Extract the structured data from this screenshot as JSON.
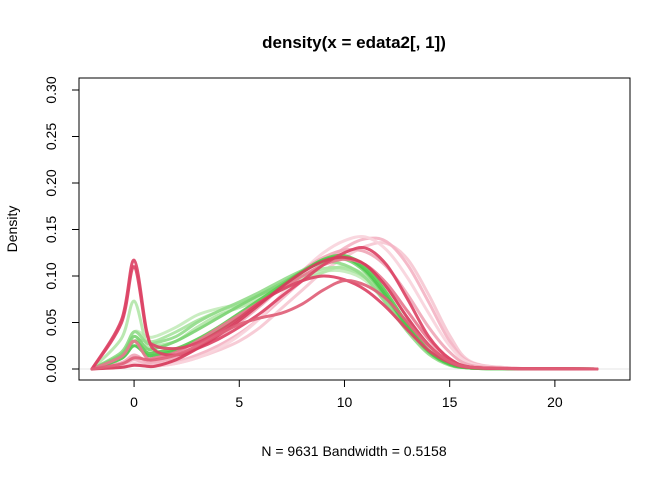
{
  "chart_data": {
    "type": "line",
    "title": "density(x = edata2[, 1])",
    "xlabel": "N = 9631   Bandwidth = 0.5158",
    "ylabel": "Density",
    "xlim": [
      -2,
      23
    ],
    "ylim": [
      0,
      0.3
    ],
    "x_ticks": [
      0,
      5,
      10,
      15,
      20
    ],
    "x_tick_labels": [
      "0",
      "5",
      "10",
      "15",
      "20"
    ],
    "y_ticks": [
      0,
      0.05,
      0.1,
      0.15,
      0.2,
      0.25,
      0.3
    ],
    "y_tick_labels": [
      "0.00",
      "0.05",
      "0.10",
      "0.15",
      "0.20",
      "0.25",
      "0.30"
    ],
    "grid": false,
    "legend": "none",
    "colors": {
      "green": "#4CC84C",
      "red": "#DC4466",
      "light_green": "#A8E4A0",
      "light_red": "#F4B4C4"
    },
    "series": [
      {
        "color": "#F6C8D2",
        "x": [
          -2,
          0,
          1,
          2,
          3,
          4,
          5,
          6,
          7,
          8,
          9,
          10,
          11,
          12,
          13,
          14,
          15,
          16,
          18,
          20,
          22
        ],
        "y": [
          0,
          0.005,
          0.003,
          0.006,
          0.012,
          0.02,
          0.03,
          0.045,
          0.065,
          0.085,
          0.105,
          0.12,
          0.132,
          0.135,
          0.118,
          0.08,
          0.036,
          0.008,
          0.001,
          0.0004,
          0
        ]
      },
      {
        "color": "#F4B4C4",
        "x": [
          -2,
          0,
          1,
          2,
          3,
          4,
          5,
          6,
          7,
          8,
          9,
          10,
          11,
          12,
          13,
          14,
          15,
          16,
          18,
          20,
          22
        ],
        "y": [
          0,
          0.01,
          0.005,
          0.008,
          0.015,
          0.025,
          0.038,
          0.055,
          0.075,
          0.095,
          0.113,
          0.13,
          0.14,
          0.137,
          0.112,
          0.072,
          0.03,
          0.007,
          0.001,
          0.0004,
          0
        ]
      },
      {
        "color": "#F8D4DC",
        "x": [
          -2,
          0,
          1,
          2,
          3,
          4,
          5,
          6,
          7,
          8,
          9,
          10,
          11,
          12,
          13,
          14,
          15,
          16,
          18,
          20,
          22
        ],
        "y": [
          0,
          0.006,
          0.003,
          0.006,
          0.012,
          0.022,
          0.036,
          0.055,
          0.08,
          0.105,
          0.125,
          0.138,
          0.142,
          0.128,
          0.098,
          0.06,
          0.025,
          0.006,
          0.001,
          0.0004,
          0
        ]
      },
      {
        "color": "#F0A8B8",
        "x": [
          -2,
          0,
          1,
          2,
          3,
          4,
          5,
          6,
          7,
          8,
          9,
          10,
          11,
          12,
          13,
          14,
          15,
          16,
          18,
          20,
          22
        ],
        "y": [
          0,
          0.015,
          0.008,
          0.012,
          0.022,
          0.035,
          0.05,
          0.068,
          0.088,
          0.106,
          0.12,
          0.128,
          0.126,
          0.11,
          0.08,
          0.045,
          0.018,
          0.004,
          0.0008,
          0.0003,
          0
        ]
      },
      {
        "color": "#C4ECBC",
        "x": [
          -2,
          0,
          1,
          2,
          3,
          4,
          5,
          6,
          7,
          8,
          9,
          10,
          11,
          12,
          13,
          14,
          15,
          16,
          18,
          20,
          22
        ],
        "y": [
          0,
          0.04,
          0.035,
          0.045,
          0.058,
          0.065,
          0.07,
          0.078,
          0.088,
          0.098,
          0.105,
          0.105,
          0.095,
          0.07,
          0.042,
          0.018,
          0.005,
          0.001,
          0.0003,
          0.0002,
          0
        ]
      },
      {
        "color": "#B4E6AA",
        "x": [
          -2,
          0,
          1,
          2,
          3,
          4,
          5,
          6,
          7,
          8,
          9,
          10,
          11,
          12,
          13,
          14,
          15,
          16,
          18,
          20,
          22
        ],
        "y": [
          0,
          0.073,
          0.025,
          0.03,
          0.045,
          0.058,
          0.066,
          0.075,
          0.085,
          0.095,
          0.104,
          0.11,
          0.1,
          0.075,
          0.045,
          0.02,
          0.006,
          0.0015,
          0.0003,
          0.0002,
          0
        ]
      },
      {
        "color": "#A8E4A0",
        "x": [
          -2,
          0,
          1,
          2,
          3,
          4,
          5,
          6,
          7,
          8,
          9,
          10,
          11,
          12,
          13,
          14,
          15,
          16,
          18,
          20,
          22
        ],
        "y": [
          0,
          0.03,
          0.03,
          0.04,
          0.052,
          0.062,
          0.07,
          0.08,
          0.09,
          0.1,
          0.108,
          0.108,
          0.098,
          0.072,
          0.042,
          0.018,
          0.005,
          0.001,
          0.0003,
          0.0002,
          0
        ]
      },
      {
        "color": "#94DC8C",
        "x": [
          -2,
          0,
          1,
          2,
          3,
          4,
          5,
          6,
          7,
          8,
          9,
          10,
          11,
          12,
          13,
          14,
          15,
          16,
          18,
          20,
          22
        ],
        "y": [
          0,
          0.04,
          0.028,
          0.035,
          0.05,
          0.062,
          0.072,
          0.083,
          0.095,
          0.106,
          0.115,
          0.112,
          0.098,
          0.07,
          0.04,
          0.016,
          0.004,
          0.001,
          0.0003,
          0.0002,
          0
        ]
      },
      {
        "color": "#7CD474",
        "x": [
          -2,
          0,
          1,
          2,
          3,
          4,
          5,
          6,
          7,
          8,
          9,
          10,
          11,
          12,
          13,
          14,
          15,
          16,
          18,
          20,
          22
        ],
        "y": [
          0,
          0.035,
          0.022,
          0.03,
          0.042,
          0.055,
          0.068,
          0.08,
          0.092,
          0.105,
          0.115,
          0.118,
          0.104,
          0.076,
          0.044,
          0.018,
          0.005,
          0.001,
          0.0003,
          0.0002,
          0
        ]
      },
      {
        "color": "#5CCC54",
        "x": [
          -2,
          0,
          1,
          2,
          3,
          4,
          5,
          6,
          7,
          8,
          9,
          10,
          11,
          12,
          13,
          14,
          15,
          16,
          18,
          20,
          22
        ],
        "y": [
          0,
          0.03,
          0.018,
          0.022,
          0.032,
          0.045,
          0.06,
          0.075,
          0.09,
          0.105,
          0.118,
          0.122,
          0.11,
          0.082,
          0.048,
          0.02,
          0.006,
          0.001,
          0.0003,
          0.0002,
          0
        ]
      },
      {
        "color": "#4CC84C",
        "x": [
          -2,
          0,
          1,
          2,
          3,
          4,
          5,
          6,
          7,
          8,
          9,
          10,
          11,
          12,
          13,
          14,
          15,
          16,
          18,
          20,
          22
        ],
        "y": [
          0,
          0.025,
          0.015,
          0.02,
          0.03,
          0.042,
          0.056,
          0.072,
          0.088,
          0.104,
          0.117,
          0.12,
          0.106,
          0.078,
          0.045,
          0.019,
          0.005,
          0.001,
          0.0003,
          0.0002,
          0
        ]
      },
      {
        "color": "#E87890",
        "x": [
          -2,
          0,
          1,
          2,
          3,
          4,
          5,
          6,
          7,
          8,
          9,
          10,
          11,
          12,
          13,
          14,
          15,
          16,
          18,
          20,
          22
        ],
        "y": [
          0,
          0.03,
          0.012,
          0.018,
          0.03,
          0.044,
          0.058,
          0.072,
          0.086,
          0.1,
          0.112,
          0.118,
          0.112,
          0.092,
          0.062,
          0.032,
          0.011,
          0.002,
          0.0005,
          0.0003,
          0
        ]
      },
      {
        "color": "#DC4466",
        "x": [
          -2,
          0,
          1,
          2,
          3,
          4,
          5,
          6,
          7,
          8,
          9,
          10,
          11,
          12,
          13,
          14,
          15,
          16,
          18,
          20,
          22
        ],
        "y": [
          0,
          0.117,
          0.02,
          0.015,
          0.022,
          0.032,
          0.045,
          0.06,
          0.078,
          0.095,
          0.112,
          0.125,
          0.13,
          0.112,
          0.075,
          0.035,
          0.011,
          0.002,
          0.0005,
          0.0003,
          0
        ]
      },
      {
        "color": "#DC4466",
        "x": [
          -2,
          0,
          1,
          2,
          3,
          4,
          5,
          6,
          7,
          8,
          9,
          10,
          11,
          12,
          13,
          14,
          15,
          16,
          18,
          20,
          22
        ],
        "y": [
          0,
          0.11,
          0.025,
          0.022,
          0.028,
          0.04,
          0.055,
          0.072,
          0.085,
          0.095,
          0.1,
          0.096,
          0.085,
          0.066,
          0.042,
          0.02,
          0.007,
          0.0015,
          0.0004,
          0.0003,
          0
        ]
      },
      {
        "color": "#D63C5C",
        "x": [
          -2,
          0,
          1,
          2,
          3,
          4,
          5,
          6,
          7,
          8,
          9,
          10,
          11,
          12,
          13,
          14,
          15,
          16,
          18,
          20,
          22
        ],
        "y": [
          0,
          0.004,
          0.003,
          0.01,
          0.022,
          0.036,
          0.052,
          0.07,
          0.088,
          0.104,
          0.116,
          0.12,
          0.112,
          0.088,
          0.055,
          0.026,
          0.008,
          0.002,
          0.0004,
          0.0003,
          0
        ]
      },
      {
        "color": "#E06078",
        "x": [
          -2,
          0,
          1,
          2,
          3,
          4,
          5,
          6,
          7,
          8,
          9,
          10,
          11,
          12,
          13,
          14,
          15,
          16,
          18,
          20,
          22
        ],
        "y": [
          0,
          0.012,
          0.01,
          0.015,
          0.025,
          0.037,
          0.048,
          0.055,
          0.06,
          0.07,
          0.085,
          0.095,
          0.09,
          0.075,
          0.05,
          0.025,
          0.008,
          0.002,
          0.0004,
          0.0003,
          0
        ]
      }
    ]
  }
}
